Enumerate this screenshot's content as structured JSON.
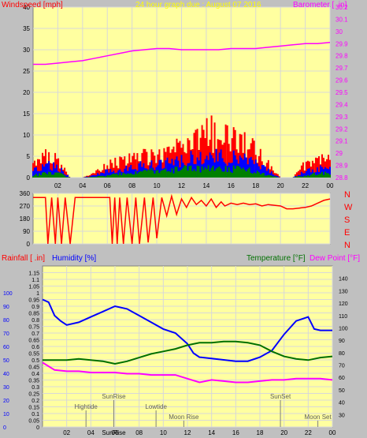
{
  "header": {
    "left_label": "Windspeed [mph]",
    "title": "24 hour graph due : August 07 2016",
    "right_label": "Barometer [ .in]"
  },
  "bottom_header": {
    "left_label_1": "Rainfall [ .in]",
    "left_label_2": "Humidity [%]",
    "right_label_1": "Temperature [°F]",
    "right_label_2": "Dew Point [°F]"
  },
  "colors": {
    "plot_bg": "#ffffa0",
    "frame": "#c0c0c0",
    "grid": "#d8d8d8",
    "windspeed_axis": "#ff0000",
    "barometer_axis": "#ff00ff",
    "humidity": "#0000ff",
    "temperature": "#007000",
    "dewpoint": "#ff00ff",
    "wind_gust": "#ff0000",
    "wind_avg": "#0000ff",
    "wind_low": "#008000"
  },
  "chart_data": [
    {
      "type": "line",
      "name": "top",
      "x_ticks": [
        "02",
        "04",
        "06",
        "08",
        "10",
        "12",
        "14",
        "16",
        "18",
        "20",
        "22",
        "00"
      ],
      "y_left": {
        "min": 0,
        "max": 40,
        "ticks": [
          "0",
          "5",
          "10",
          "15",
          "20",
          "25",
          "30",
          "35",
          "40"
        ]
      },
      "y_right": {
        "min": 28.8,
        "max": 30.2,
        "ticks": [
          "28.8",
          "28.9",
          "29",
          "29.1",
          "29.2",
          "29.3",
          "29.4",
          "29.5",
          "29.6",
          "29.7",
          "29.8",
          "29.9",
          "30",
          "30.1",
          "30.2"
        ]
      },
      "barometer": {
        "x": [
          0,
          1,
          2,
          3,
          4,
          5,
          6,
          7,
          8,
          9,
          10,
          11,
          12,
          13,
          14,
          15,
          16,
          17,
          18,
          19,
          20,
          21,
          22,
          23,
          24
        ],
        "values": [
          29.73,
          29.73,
          29.74,
          29.75,
          29.76,
          29.78,
          29.8,
          29.82,
          29.84,
          29.85,
          29.86,
          29.86,
          29.85,
          29.85,
          29.85,
          29.85,
          29.86,
          29.86,
          29.86,
          29.87,
          29.88,
          29.89,
          29.9,
          29.9,
          29.91
        ]
      },
      "wind_envelope": {
        "x": [
          0,
          1,
          2,
          3,
          4,
          5,
          6,
          7,
          8,
          9,
          10,
          11,
          12,
          13,
          14,
          15,
          16,
          17,
          18,
          19,
          20,
          21,
          22,
          23,
          24
        ],
        "gust": [
          3,
          5,
          4,
          0,
          0,
          1,
          3,
          4,
          4,
          5,
          5,
          6,
          7,
          9,
          11,
          10,
          9,
          8,
          6,
          3,
          0,
          0,
          3,
          4,
          4
        ],
        "avg": [
          1.5,
          3,
          2.5,
          0,
          0,
          0.5,
          1.5,
          2,
          2.5,
          3,
          3,
          3.5,
          4,
          4.5,
          5,
          5,
          4.5,
          4,
          3,
          1.5,
          0,
          0,
          1.5,
          2,
          2
        ],
        "low": [
          0.5,
          1,
          1,
          0,
          0,
          0.2,
          0.5,
          1,
          1,
          1.5,
          1.5,
          1.5,
          2,
          2,
          2,
          2,
          2,
          2,
          1.5,
          0.5,
          0,
          0,
          0.5,
          1,
          1
        ]
      }
    },
    {
      "type": "line",
      "name": "wind-direction",
      "y_left": {
        "min": 0,
        "max": 360,
        "ticks": [
          "0",
          "90",
          "180",
          "270",
          "360"
        ]
      },
      "compass": [
        "N",
        "W",
        "S",
        "E",
        "N"
      ],
      "direction": {
        "x": [
          0,
          1,
          1.2,
          1.5,
          1.8,
          2.0,
          2.3,
          2.6,
          3.0,
          3.4,
          4,
          5,
          6.2,
          6.4,
          6.6,
          6.8,
          7,
          7.3,
          7.6,
          8,
          8.3,
          8.6,
          9,
          9.3,
          9.7,
          10,
          10.4,
          10.8,
          11.2,
          11.6,
          12,
          12.4,
          12.8,
          13.2,
          13.6,
          14,
          14.4,
          14.8,
          15.2,
          15.5,
          16,
          16.5,
          17,
          17.5,
          18,
          18.5,
          19,
          19.5,
          20,
          20.5,
          21,
          21.5,
          22,
          22.5,
          23,
          23.5,
          24
        ],
        "values": [
          330,
          330,
          0,
          330,
          0,
          330,
          0,
          330,
          0,
          330,
          330,
          330,
          330,
          0,
          330,
          0,
          330,
          0,
          330,
          0,
          330,
          0,
          330,
          10,
          330,
          40,
          330,
          200,
          340,
          210,
          320,
          260,
          330,
          280,
          310,
          270,
          320,
          260,
          300,
          270,
          290,
          280,
          290,
          280,
          285,
          270,
          280,
          275,
          270,
          250,
          250,
          255,
          260,
          270,
          290,
          310,
          320
        ]
      }
    },
    {
      "type": "line",
      "name": "bottom",
      "x_ticks": [
        "02",
        "04",
        "06",
        "08",
        "10",
        "12",
        "14",
        "16",
        "18",
        "20",
        "22",
        "00"
      ],
      "y_left": {
        "min": 0,
        "max": 1.2,
        "ticks": [
          "0",
          "0.05",
          "0.1",
          "0.15",
          "0.2",
          "0.25",
          "0.3",
          "0.35",
          "0.4",
          "0.45",
          "0.5",
          "0.55",
          "0.6",
          "0.65",
          "0.7",
          "0.75",
          "0.8",
          "0.85",
          "0.9",
          "0.95",
          "1",
          "1.05",
          "1.1",
          "1.15"
        ],
        "humidity_ticks": [
          "0",
          "10",
          "20",
          "30",
          "40",
          "50",
          "60",
          "70",
          "80",
          "90",
          "100"
        ]
      },
      "y_right": {
        "min": 20,
        "max": 150,
        "ticks": [
          "30",
          "40",
          "50",
          "60",
          "70",
          "80",
          "90",
          "100",
          "110",
          "120",
          "130",
          "140"
        ]
      },
      "humidity": {
        "x": [
          0,
          0.5,
          1,
          1.5,
          2,
          3,
          4,
          5,
          6,
          7,
          8,
          9,
          10,
          11,
          12,
          12.5,
          13,
          14,
          15,
          16,
          17,
          18,
          19,
          20,
          21,
          22,
          22.5,
          23,
          24
        ],
        "values": [
          95,
          93,
          83,
          79,
          76,
          78,
          82,
          86,
          90,
          88,
          83,
          78,
          73,
          70,
          62,
          55,
          52,
          51,
          50,
          49,
          49,
          52,
          57,
          69,
          79,
          82,
          73,
          72,
          72
        ]
      },
      "temperature": {
        "x": [
          0,
          1,
          2,
          3,
          4,
          5,
          6,
          7,
          8,
          9,
          10,
          11,
          12,
          13,
          14,
          15,
          16,
          17,
          18,
          19,
          20,
          21,
          22,
          23,
          24
        ],
        "values": [
          74,
          74,
          74,
          75,
          74,
          73,
          71,
          73,
          76,
          79,
          81,
          83,
          86,
          88,
          88,
          89,
          89,
          88,
          86,
          81,
          77,
          75,
          74,
          76,
          77
        ]
      },
      "dewpoint": {
        "x": [
          0,
          1,
          2,
          3,
          4,
          5,
          6,
          7,
          8,
          9,
          10,
          11,
          12,
          13,
          14,
          15,
          16,
          17,
          18,
          19,
          20,
          21,
          22,
          23,
          24
        ],
        "values": [
          72,
          66,
          65,
          65,
          64,
          64,
          64,
          63,
          63,
          62,
          62,
          62,
          59,
          56,
          58,
          57,
          56,
          56,
          57,
          58,
          58,
          59,
          59,
          59,
          58
        ]
      },
      "annotations": [
        {
          "text": "Hightide",
          "x": 3.6,
          "row": 2
        },
        {
          "text": "SunRise",
          "x": 5.9,
          "row": 1
        },
        {
          "text": "Lowtide",
          "x": 9.4,
          "row": 2
        },
        {
          "text": "Moon Rise",
          "x": 11.7,
          "row": 3
        },
        {
          "text": "SunSet",
          "x": 19.7,
          "row": 1
        },
        {
          "text": "Moon Set",
          "x": 22.8,
          "row": 3
        }
      ],
      "bottom_row_labels": [
        "SunRise"
      ]
    }
  ]
}
